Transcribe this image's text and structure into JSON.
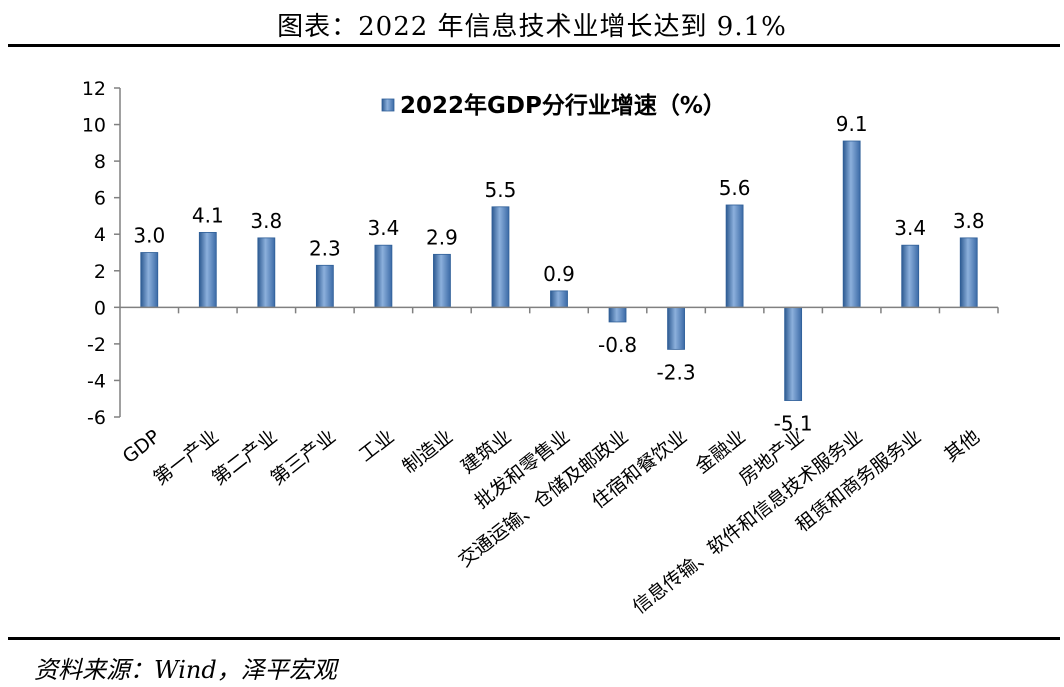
{
  "header": {
    "title": "图表：2022 年信息技术业增长达到 9.1%"
  },
  "footer": {
    "source": "资料来源：Wind，泽平宏观"
  },
  "colors": {
    "bar": "#4f81bd",
    "bar_edge": "#2f5f98",
    "axis": "#808080"
  },
  "chart_data": {
    "type": "bar",
    "title": "",
    "xlabel": "",
    "ylabel": "",
    "ylim": [
      -6,
      12
    ],
    "yticks": [
      12,
      10,
      8,
      6,
      4,
      2,
      0,
      -2,
      -4,
      -6
    ],
    "grid": false,
    "legend": {
      "position": "top-center",
      "entries": [
        "2022年GDP分行业增速（%）"
      ]
    },
    "categories": [
      "GDP",
      "第一产业",
      "第二产业",
      "第三产业",
      "工业",
      "制造业",
      "建筑业",
      "批发和零售业",
      "交通运输、仓储及邮政业",
      "住宿和餐饮业",
      "金融业",
      "房地产业",
      "信息传输、软件和信息技术服务业",
      "租赁和商务服务业",
      "其他"
    ],
    "series": [
      {
        "name": "2022年GDP分行业增速（%）",
        "values": [
          3.0,
          4.1,
          3.8,
          2.3,
          3.4,
          2.9,
          5.5,
          0.9,
          -0.8,
          -2.3,
          5.6,
          -5.1,
          9.1,
          3.4,
          3.8
        ]
      }
    ],
    "data_labels": [
      "3.0",
      "4.1",
      "3.8",
      "2.3",
      "3.4",
      "2.9",
      "5.5",
      "0.9",
      "-0.8",
      "-2.3",
      "5.6",
      "-5.1",
      "9.1",
      "3.4",
      "3.8"
    ]
  }
}
